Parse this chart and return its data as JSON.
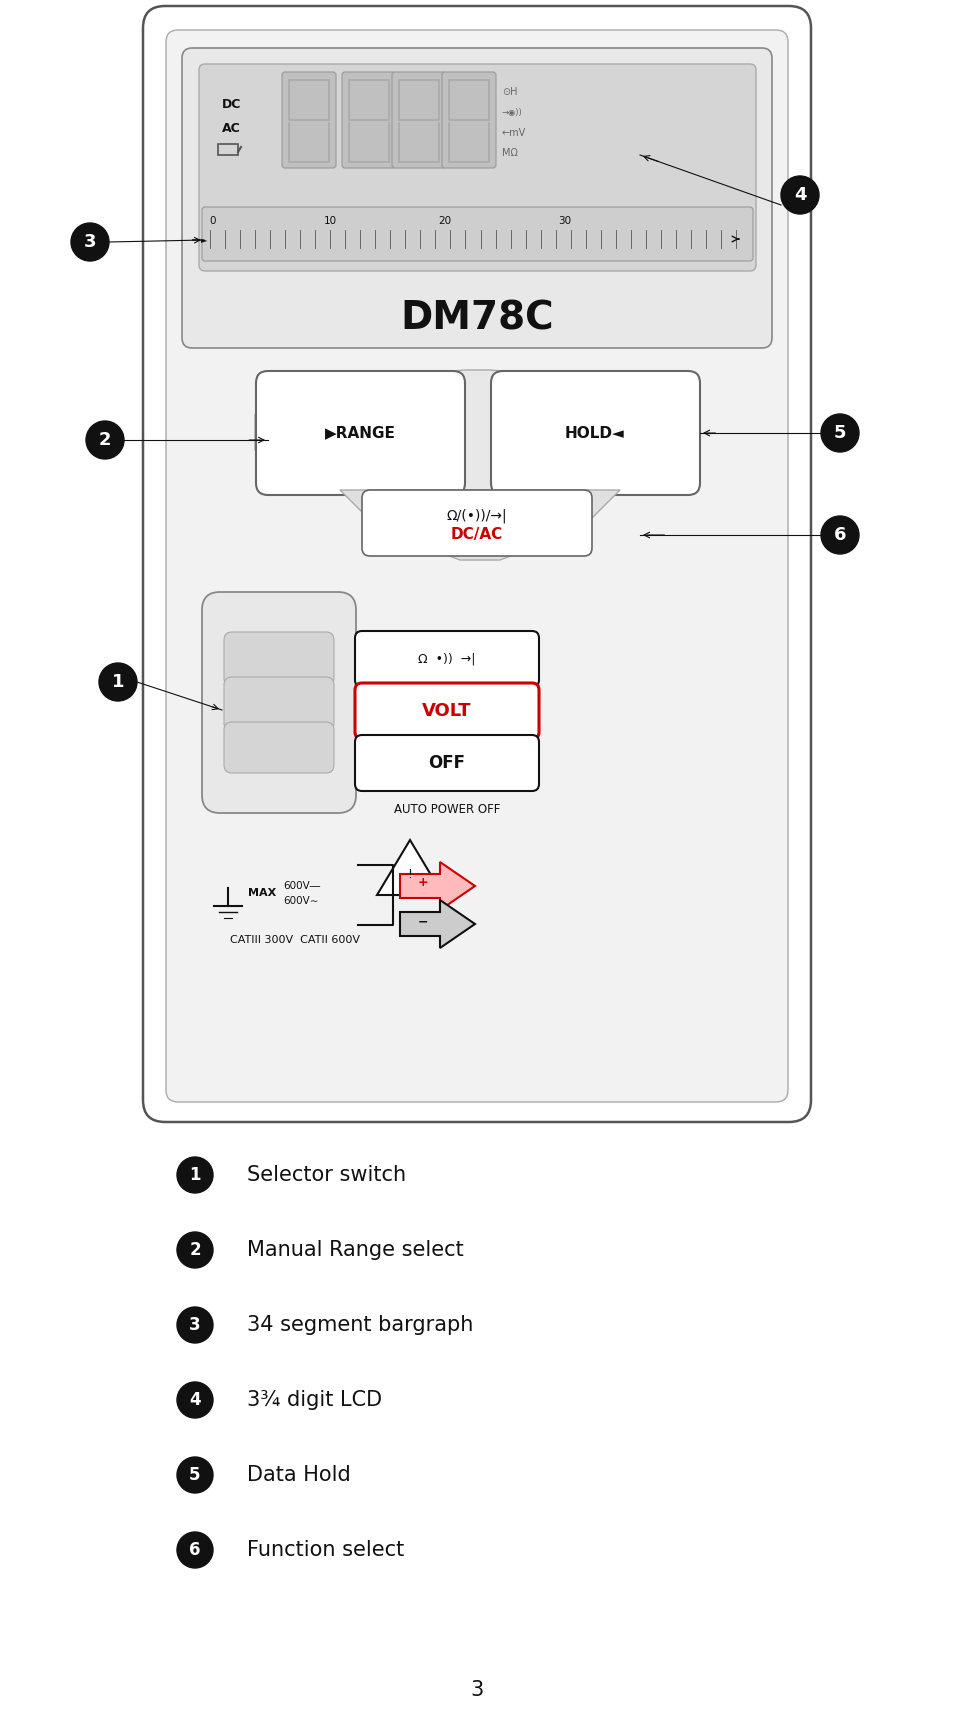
{
  "bg_color": "#ffffff",
  "title_text": "DM78C",
  "page_number": "3",
  "legend_items": [
    {
      "num": "1",
      "text": "Selector switch"
    },
    {
      "num": "2",
      "text": "Manual Range select"
    },
    {
      "num": "3",
      "text": "34 segment bargraph"
    },
    {
      "num": "4",
      "text": "3¾ digit LCD"
    },
    {
      "num": "5",
      "text": "Data Hold"
    },
    {
      "num": "6",
      "text": "Function select"
    }
  ],
  "device_outline_color": "#333333",
  "red_color": "#cc0000",
  "black_color": "#111111",
  "gray_light": "#f0f0f0",
  "gray_med": "#dddddd",
  "gray_dark": "#888888"
}
